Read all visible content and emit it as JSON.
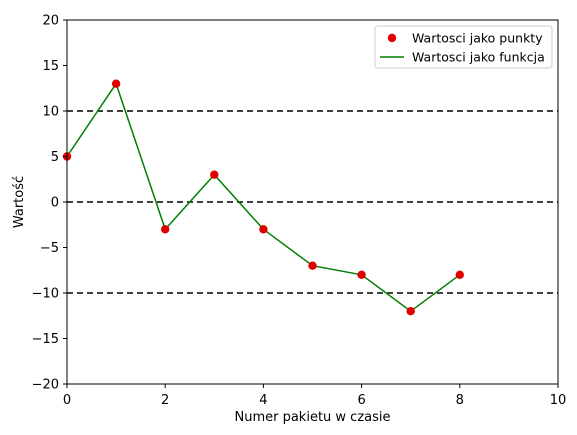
{
  "chart_data": {
    "type": "line",
    "title": "",
    "xlabel": "Numer pakietu w czasie",
    "ylabel": "Wartość",
    "xlim": [
      0,
      10
    ],
    "ylim": [
      -20,
      20
    ],
    "x_ticks": [
      0,
      2,
      4,
      6,
      8,
      10
    ],
    "y_ticks": [
      -20,
      -15,
      -10,
      -5,
      0,
      5,
      10,
      15,
      20
    ],
    "grid": false,
    "legend_position": "top-right",
    "x": [
      0,
      1,
      2,
      3,
      4,
      5,
      6,
      7,
      8
    ],
    "series": [
      {
        "name": "Wartosci jako punkty",
        "style": "markers",
        "color": "#e00000",
        "values": [
          5,
          13,
          -3,
          3,
          -3,
          -7,
          -8,
          -12,
          -8
        ]
      },
      {
        "name": "Wartosci jako funkcja",
        "style": "line",
        "color": "#008000",
        "values": [
          5,
          13,
          -3,
          3,
          -3,
          -7,
          -8,
          -12,
          -8
        ]
      }
    ],
    "reference_lines": [
      {
        "axis": "y",
        "value": 10,
        "style": "dashed",
        "color": "#000000"
      },
      {
        "axis": "y",
        "value": 0,
        "style": "dashed",
        "color": "#000000"
      },
      {
        "axis": "y",
        "value": -10,
        "style": "dashed",
        "color": "#000000"
      }
    ]
  }
}
